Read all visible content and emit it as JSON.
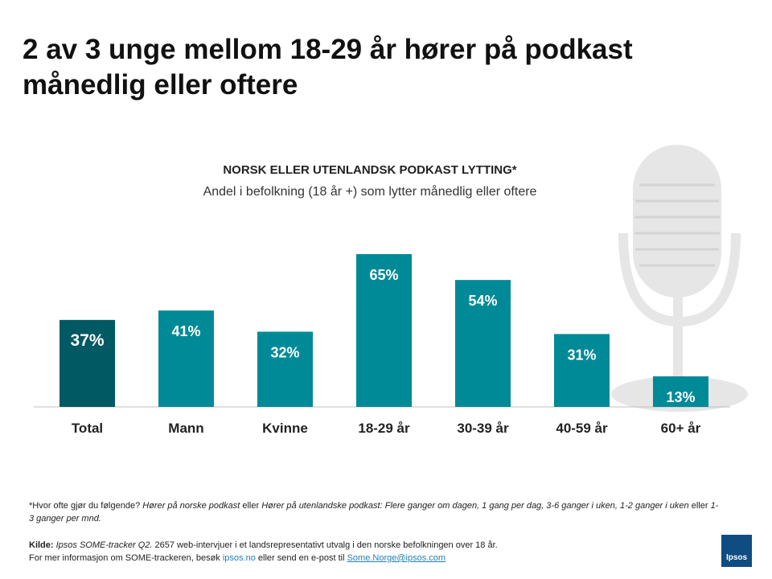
{
  "headline": "2 av 3 unge mellom 18-29 år hører på podkast månedlig eller oftere",
  "colors": {
    "bar": "#008a97",
    "bar_highlight": "#005963",
    "label": "#ffffff",
    "axis": "#bfbfbf"
  },
  "chart_data": {
    "type": "bar",
    "title": "NORSK ELLER UTENLANDSK PODKAST LYTTING*",
    "subtitle": "Andel i befolkning (18 år +) som lytter månedlig eller oftere",
    "categories": [
      "Total",
      "Mann",
      "Kvinne",
      "18-29 år",
      "30-39 år",
      "40-59 år",
      "60+ år"
    ],
    "values": [
      37,
      41,
      32,
      65,
      54,
      31,
      13
    ],
    "value_labels": [
      "37%",
      "41%",
      "32%",
      "65%",
      "54%",
      "31%",
      "13%"
    ],
    "highlight_index": 0,
    "unit": "%",
    "ylim": [
      0,
      70
    ],
    "grid": false,
    "xlabel": "",
    "ylabel": ""
  },
  "footnote": {
    "prefix": "*Hvor ofte gjør du følgende?",
    "q1": "Hører på norske podkast",
    "mid": "eller",
    "q2": "Hører på utenlandske podkast: Flere ganger om dagen, 1 gang per dag, 3-6 ganger i uken, 1-2 ganger i uken",
    "mid2": "eller",
    "q3": "1-3 ganger per mnd."
  },
  "source": {
    "label": "Kilde:",
    "name": "Ipsos SOME-tracker Q2.",
    "text": "2657 web-intervjuer i et landsrepresentativt utvalg i den norske befolkningen over 18 år.",
    "line2_prefix": "For mer informasjon om SOME-trackeren, besøk",
    "site": "ipsos.no",
    "line2_mid": "eller send en e-post til",
    "email": "Some.Norge@ipsos.com"
  },
  "logo_text": "Ipsos"
}
